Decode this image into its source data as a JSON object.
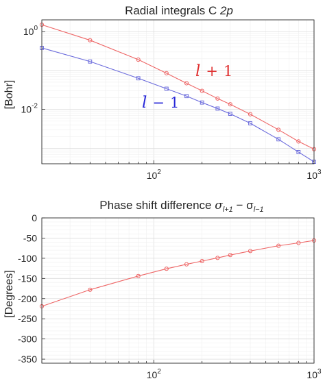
{
  "chart_data": [
    {
      "type": "line",
      "title": "Radial integrals C ",
      "title_italic": "2p",
      "xlabel": "",
      "ylabel": "[Bohr]",
      "xscale": "log",
      "yscale": "log",
      "xlim": [
        20,
        1000
      ],
      "ylim": [
        0.0004,
        2
      ],
      "x_ticks": [
        {
          "value": 100,
          "base": "10",
          "exp": "2"
        },
        {
          "value": 1000,
          "base": "10",
          "exp": "3"
        }
      ],
      "y_ticks": [
        {
          "value": 0.01,
          "base": "10",
          "exp": "-2"
        },
        {
          "value": 1,
          "base": "10",
          "exp": "0"
        }
      ],
      "grid": true,
      "series": [
        {
          "name": "l + 1",
          "color": "#ee6666",
          "marker": "circle",
          "x": [
            20,
            40,
            80,
            120,
            160,
            200,
            250,
            300,
            400,
            600,
            800,
            1000
          ],
          "y": [
            1.5,
            0.6,
            0.19,
            0.085,
            0.047,
            0.03,
            0.019,
            0.0135,
            0.0075,
            0.003,
            0.0015,
            0.00095
          ]
        },
        {
          "name": "l − 1",
          "color": "#6b6bdc",
          "marker": "square",
          "x": [
            20,
            40,
            80,
            120,
            160,
            200,
            250,
            300,
            400,
            600,
            800,
            1000
          ],
          "y": [
            0.38,
            0.17,
            0.063,
            0.034,
            0.022,
            0.015,
            0.0105,
            0.0077,
            0.0044,
            0.0017,
            0.0008,
            0.00045
          ]
        }
      ],
      "annotations": [
        {
          "var": "l",
          "op": "+",
          "num": "1",
          "color": "#e03030"
        },
        {
          "var": "l",
          "op": "−",
          "num": "1",
          "color": "#2828d8"
        }
      ]
    },
    {
      "type": "line",
      "title": "Phase shift difference ",
      "title_math": "σ",
      "title_sub1": "l+1",
      "title_mid": " − σ",
      "title_sub2": "l−1",
      "xlabel": "",
      "ylabel": "[Degrees]",
      "xscale": "log",
      "yscale": "linear",
      "xlim": [
        20,
        1000
      ],
      "ylim": [
        -360,
        0
      ],
      "x_ticks": [
        {
          "value": 100,
          "base": "10",
          "exp": "2"
        },
        {
          "value": 1000,
          "base": "10",
          "exp": "3"
        }
      ],
      "y_ticks": [
        0,
        -50,
        -100,
        -150,
        -200,
        -250,
        -300,
        -350
      ],
      "y_tick_labels": [
        "0",
        "-50",
        "-100",
        "-150",
        "-200",
        "-250",
        "-300",
        "-350"
      ],
      "grid": true,
      "series": [
        {
          "color": "#ee6666",
          "marker": "circle",
          "x": [
            20,
            40,
            80,
            120,
            160,
            200,
            250,
            300,
            400,
            600,
            800,
            1000
          ],
          "y": [
            -219,
            -178,
            -144,
            -126,
            -115,
            -107,
            -99,
            -92,
            -82,
            -69,
            -62,
            -56
          ]
        }
      ]
    }
  ]
}
